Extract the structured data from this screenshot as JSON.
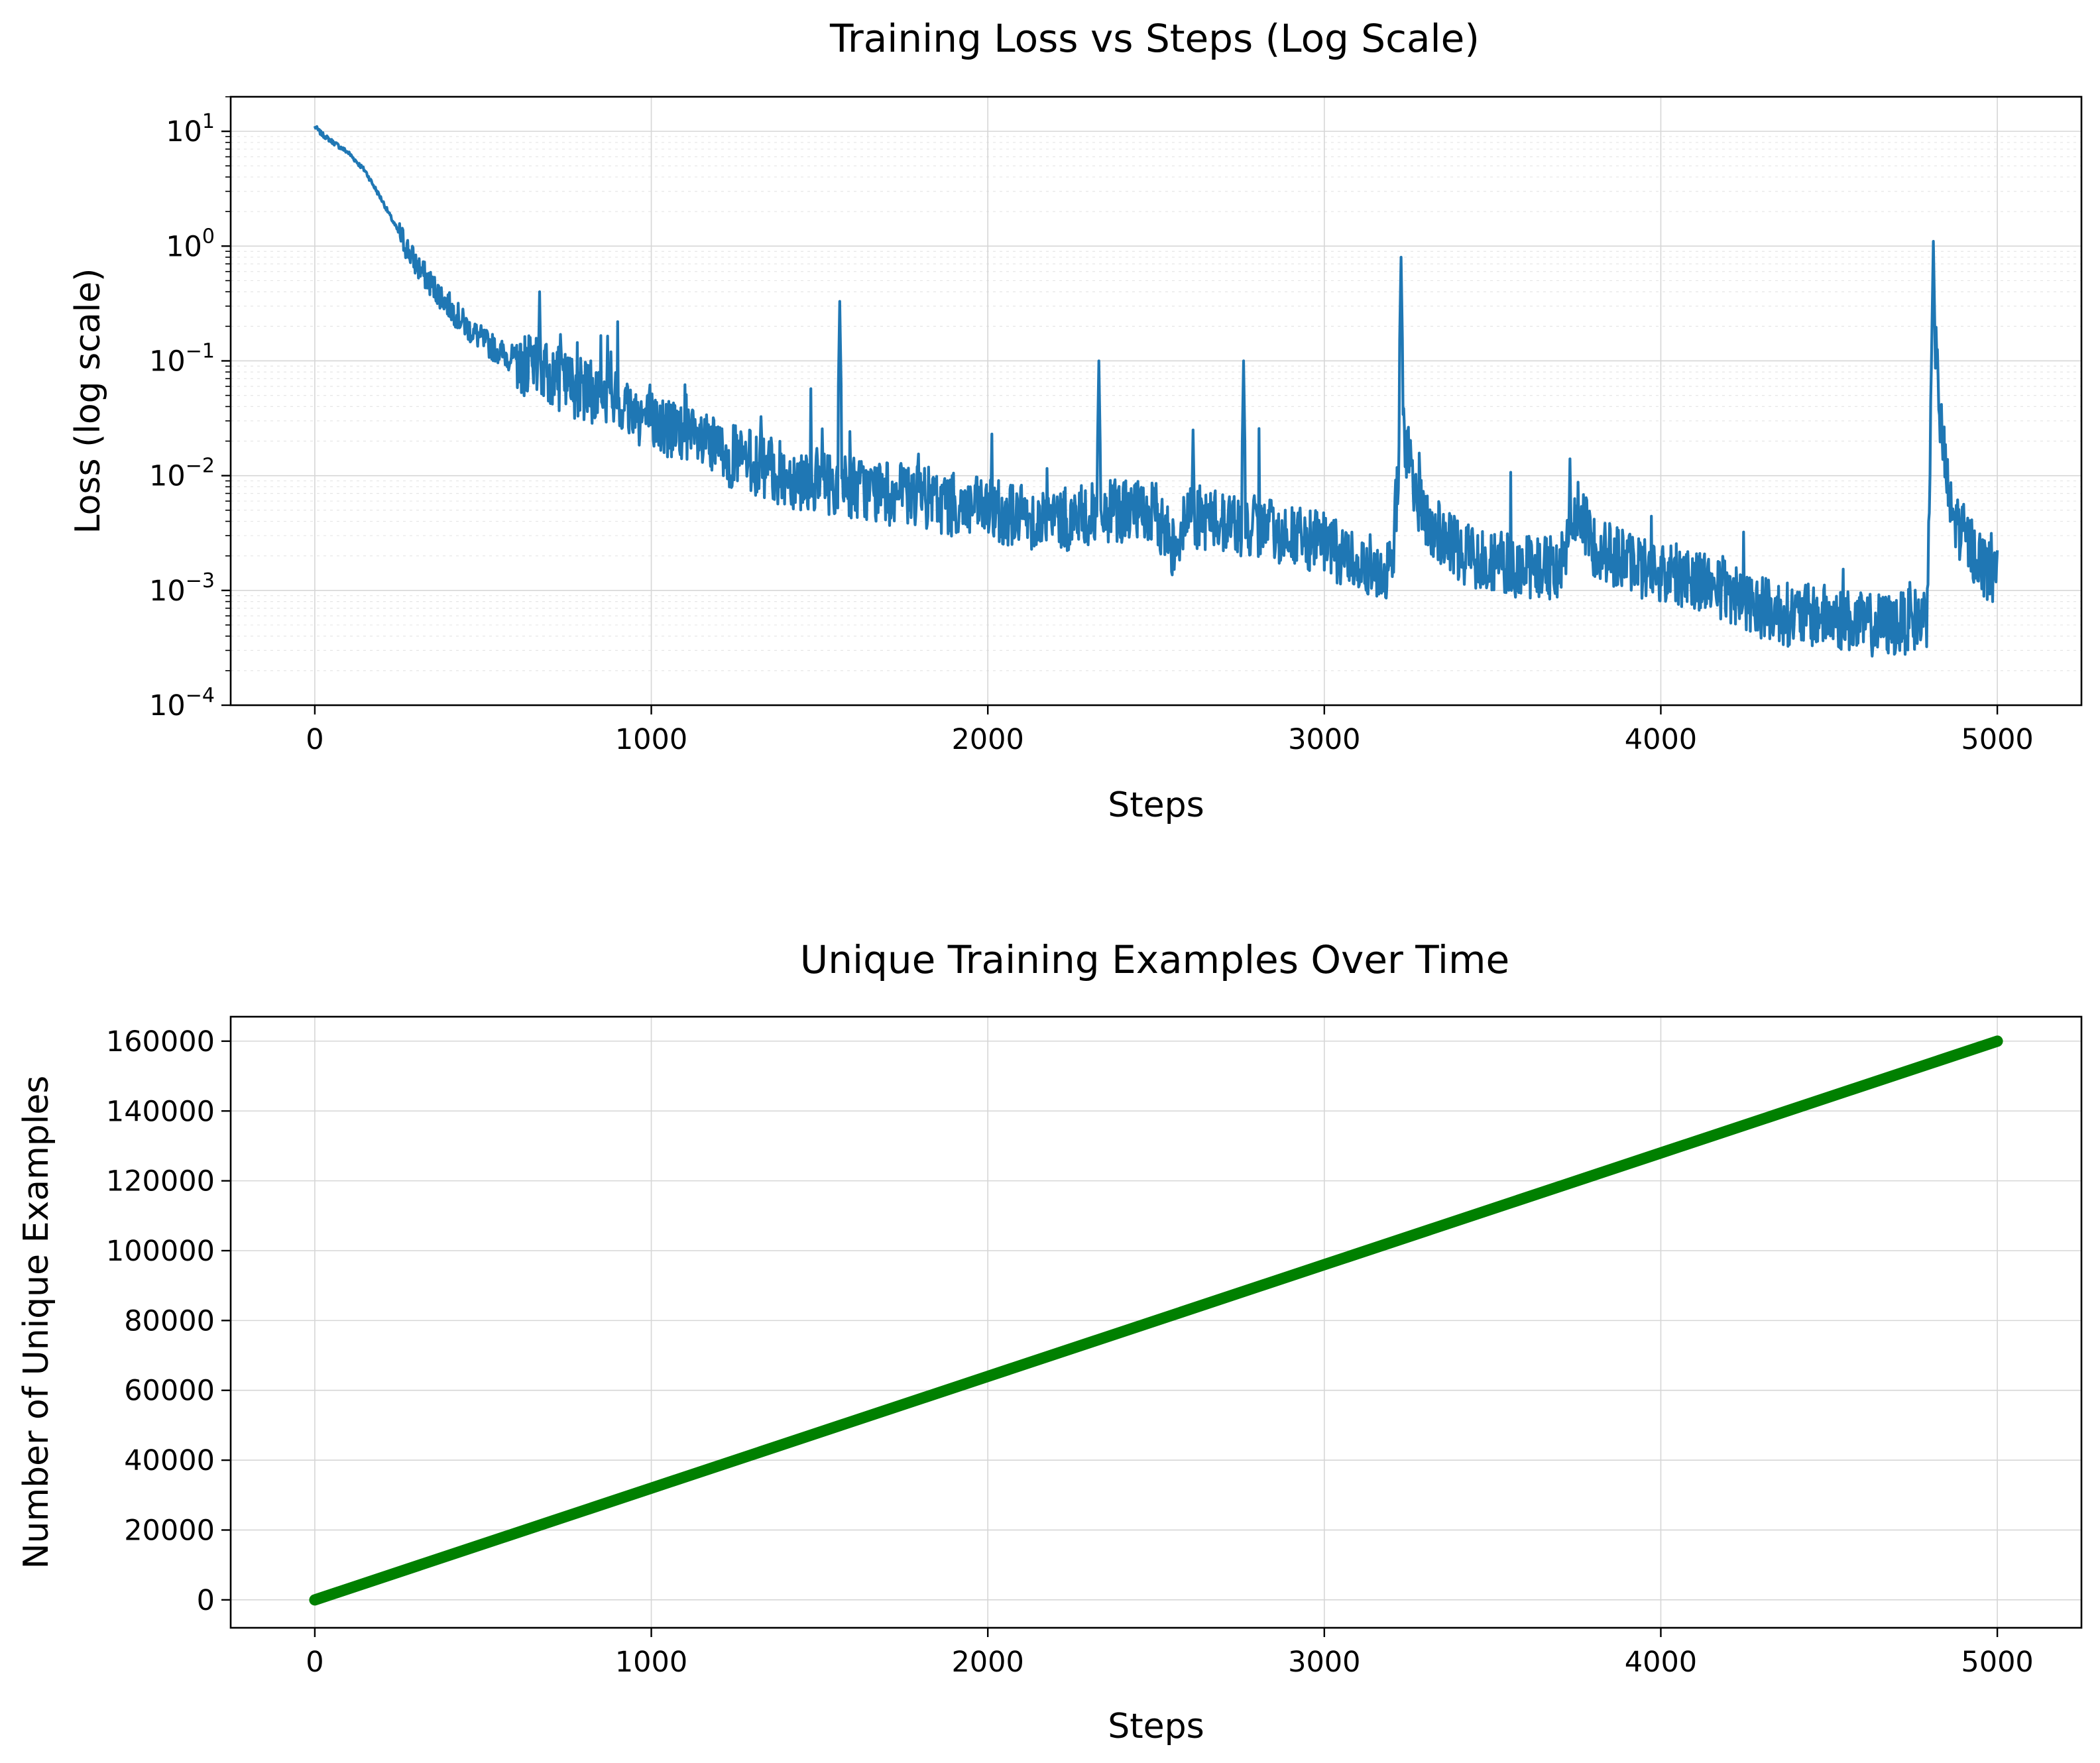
{
  "chart_data": [
    {
      "type": "line",
      "title": "Training Loss vs Steps (Log Scale)",
      "xlabel": "Steps",
      "ylabel": "Loss (log scale)",
      "yscale": "log",
      "xlim": [
        -250,
        5250
      ],
      "ylim": [
        0.0001,
        20
      ],
      "xticks": [
        0,
        1000,
        2000,
        3000,
        4000,
        5000
      ],
      "xtick_labels": [
        "0",
        "1000",
        "2000",
        "3000",
        "4000",
        "5000"
      ],
      "ytick_exponents": [
        1,
        0,
        -1,
        -2,
        -3,
        -4
      ],
      "ytick_base": "10",
      "grid": true,
      "legend": "none",
      "color": "#1f77b4",
      "series": [
        {
          "x": [
            0,
            20,
            50,
            100,
            150,
            200,
            250,
            300,
            350,
            400,
            450,
            500,
            550,
            600,
            650,
            700,
            800,
            900,
            1000,
            1100,
            1200,
            1300,
            1400,
            1500,
            1600,
            1700,
            1800,
            1900,
            2000,
            2100,
            2200,
            2300,
            2400,
            2500,
            2550,
            2600,
            2700,
            2800,
            2900,
            3000,
            3100,
            3200,
            3230,
            3260,
            3300,
            3400,
            3500,
            3600,
            3700,
            3750,
            3800,
            3900,
            4000,
            4100,
            4200,
            4300,
            4400,
            4500,
            4600,
            4700,
            4790,
            4810,
            4830,
            4860,
            4900,
            4950,
            5000
          ],
          "y": [
            11,
            9.5,
            8.2,
            6.5,
            4.5,
            2.5,
            1.3,
            0.7,
            0.45,
            0.3,
            0.2,
            0.15,
            0.12,
            0.1,
            0.085,
            0.075,
            0.055,
            0.045,
            0.03,
            0.022,
            0.016,
            0.013,
            0.01,
            0.009,
            0.008,
            0.007,
            0.0065,
            0.0055,
            0.005,
            0.0045,
            0.004,
            0.0045,
            0.005,
            0.0045,
            0.0025,
            0.0045,
            0.004,
            0.0035,
            0.003,
            0.0025,
            0.0018,
            0.0015,
            0.03,
            0.01,
            0.004,
            0.0022,
            0.0018,
            0.0016,
            0.0016,
            0.005,
            0.0025,
            0.0018,
            0.0014,
            0.0013,
            0.001,
            0.0007,
            0.0006,
            0.0006,
            0.0005,
            0.0005,
            0.0006,
            0.3,
            0.03,
            0.005,
            0.003,
            0.0018,
            0.0012
          ],
          "spikes": [
            {
              "x": 668,
              "y": 0.4
            },
            {
              "x": 730,
              "y": 0.17
            },
            {
              "x": 845,
              "y": 0.12
            },
            {
              "x": 880,
              "y": 0.12
            },
            {
              "x": 1560,
              "y": 0.33
            },
            {
              "x": 2330,
              "y": 0.1
            },
            {
              "x": 2610,
              "y": 0.025
            },
            {
              "x": 2760,
              "y": 0.1
            },
            {
              "x": 3228,
              "y": 0.8
            },
            {
              "x": 3730,
              "y": 0.014
            },
            {
              "x": 4810,
              "y": 1.1
            }
          ]
        }
      ]
    },
    {
      "type": "line",
      "title": "Unique Training Examples Over Time",
      "xlabel": "Steps",
      "ylabel": "Number of Unique Examples",
      "xlim": [
        -250,
        5250
      ],
      "ylim": [
        -8000,
        167000
      ],
      "xticks": [
        0,
        1000,
        2000,
        3000,
        4000,
        5000
      ],
      "xtick_labels": [
        "0",
        "1000",
        "2000",
        "3000",
        "4000",
        "5000"
      ],
      "yticks": [
        0,
        20000,
        40000,
        60000,
        80000,
        100000,
        120000,
        140000,
        160000
      ],
      "ytick_labels": [
        "0",
        "20000",
        "40000",
        "60000",
        "80000",
        "100000",
        "120000",
        "140000",
        "160000"
      ],
      "grid": true,
      "legend": "none",
      "color": "#008000",
      "series": [
        {
          "x": [
            0,
            1000,
            2000,
            3000,
            4000,
            5000
          ],
          "y": [
            0,
            32000,
            64000,
            96000,
            128000,
            160000
          ]
        }
      ]
    }
  ]
}
